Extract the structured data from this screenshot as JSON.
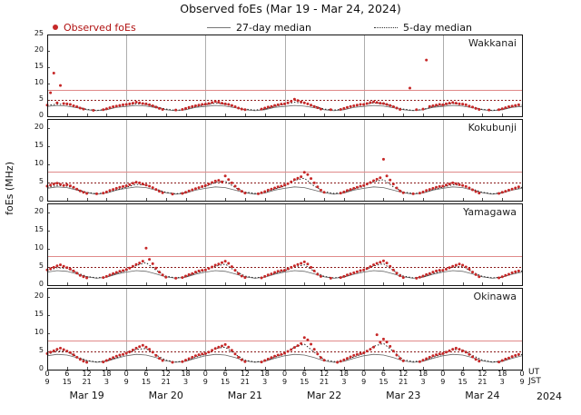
{
  "title": "Observed foEs (Mar 19 - Mar 24, 2024)",
  "legend": [
    {
      "label": "Observed foEs",
      "type": "dot",
      "color": "#c62828"
    },
    {
      "label": "27-day median",
      "type": "line",
      "color": "#777777"
    },
    {
      "label": "5-day median",
      "type": "dotted",
      "color": "#333333"
    }
  ],
  "ylabel": "foEs (MHz)",
  "axis": {
    "ut_label": "UT",
    "jst_label": "JST",
    "year": "2024",
    "ut_ticks": [
      "0",
      "6",
      "12",
      "18"
    ],
    "jst_ticks": [
      "9",
      "15",
      "21",
      "3"
    ],
    "ut_last": "0",
    "jst_last": "9",
    "days": [
      "Mar 19",
      "Mar 20",
      "Mar 21",
      "Mar 22",
      "Mar 23",
      "Mar 24"
    ]
  },
  "colors": {
    "observed": "#c62828",
    "median27": "#666666",
    "median5": "#111111",
    "threshold_solid": "#e08a8a",
    "threshold_dotted": "#8b1a1a",
    "grid": "#999999",
    "border": "#111111"
  },
  "chart_data": {
    "type": "scatter",
    "x_unit": "hours UT from Mar 19 00:00, 2024",
    "x_range": [
      0,
      144
    ],
    "x_tick_step_hours": 6,
    "grid": "vertical lines at day boundaries",
    "legend_position": "top",
    "thresholds": {
      "solid_red": 8,
      "dotted_darkred": 5
    },
    "stations": [
      {
        "name": "Wakkanai",
        "ylim": [
          0,
          25
        ],
        "yticks": [
          0,
          5,
          10,
          15,
          20,
          25
        ],
        "observed_hourly": [
          3.4,
          7.2,
          13.2,
          4.1,
          9.4,
          3.9,
          3.8,
          3.6,
          3.2,
          2.9,
          2.5,
          2.2,
          null,
          null,
          1.8,
          null,
          null,
          2.0,
          2.3,
          2.6,
          2.9,
          3.1,
          3.3,
          3.5,
          3.6,
          3.8,
          4.0,
          4.3,
          4.1,
          3.9,
          3.8,
          3.5,
          3.2,
          2.8,
          2.4,
          2.1,
          null,
          null,
          null,
          1.9,
          null,
          2.1,
          2.4,
          2.7,
          3.0,
          3.2,
          3.4,
          3.6,
          3.7,
          3.9,
          4.2,
          4.5,
          4.3,
          4.0,
          3.8,
          3.6,
          3.3,
          2.9,
          2.5,
          2.2,
          2.0,
          null,
          null,
          null,
          null,
          2.2,
          2.5,
          2.8,
          3.0,
          3.3,
          3.5,
          3.7,
          3.8,
          4.1,
          4.6,
          5.2,
          4.8,
          4.4,
          4.1,
          3.8,
          3.4,
          3.0,
          2.6,
          2.2,
          null,
          null,
          2.0,
          null,
          null,
          2.1,
          2.4,
          2.7,
          3.0,
          3.2,
          3.4,
          3.6,
          3.6,
          3.9,
          4.2,
          4.4,
          4.2,
          4.0,
          3.9,
          3.6,
          3.3,
          2.9,
          2.5,
          2.1,
          null,
          null,
          8.6,
          null,
          2.0,
          null,
          2.2,
          17.2,
          3.0,
          3.2,
          3.4,
          3.6,
          3.5,
          3.8,
          4.0,
          4.2,
          4.0,
          3.8,
          3.7,
          3.5,
          3.1,
          2.8,
          2.4,
          2.1,
          null,
          null,
          1.9,
          null,
          null,
          2.0,
          2.3,
          2.6,
          2.9,
          3.1,
          3.3,
          3.5
        ],
        "median27_3h": [
          3.0,
          3.3,
          3.1,
          2.6,
          2.0,
          1.7,
          2.0,
          2.7,
          3.0,
          3.3,
          3.1,
          2.6,
          2.0,
          1.7,
          2.0,
          2.7,
          3.0,
          3.3,
          3.1,
          2.6,
          2.0,
          1.7,
          2.0,
          2.7,
          3.0,
          3.3,
          3.1,
          2.6,
          2.0,
          1.7,
          2.0,
          2.7,
          3.0,
          3.3,
          3.1,
          2.6,
          2.0,
          1.7,
          2.0,
          2.7,
          3.0,
          3.3,
          3.1,
          2.6,
          2.0,
          1.7,
          2.0,
          2.7,
          3.0
        ],
        "median5_3h": [
          3.3,
          3.7,
          3.5,
          2.9,
          2.1,
          1.8,
          2.1,
          2.9,
          3.4,
          3.8,
          3.6,
          2.9,
          2.2,
          1.8,
          2.1,
          2.9,
          3.5,
          4.0,
          3.7,
          3.0,
          2.2,
          1.9,
          2.2,
          3.0,
          3.6,
          4.3,
          3.9,
          3.1,
          2.2,
          1.9,
          2.2,
          3.0,
          3.5,
          4.1,
          3.8,
          3.0,
          2.2,
          1.8,
          2.1,
          2.9,
          3.4,
          3.9,
          3.6,
          2.9,
          2.1,
          1.8,
          2.1,
          2.9,
          3.4
        ]
      },
      {
        "name": "Kokubunji",
        "ylim": [
          0,
          22.5
        ],
        "yticks": [
          0,
          5,
          10,
          15,
          20
        ],
        "observed_hourly": [
          4.0,
          4.3,
          4.6,
          4.8,
          4.5,
          4.2,
          4.4,
          4.1,
          3.7,
          3.2,
          2.7,
          2.3,
          2.0,
          null,
          null,
          1.9,
          null,
          2.1,
          2.4,
          2.8,
          3.1,
          3.4,
          3.7,
          3.9,
          4.1,
          4.4,
          4.8,
          5.1,
          4.9,
          4.6,
          4.3,
          4.0,
          3.6,
          3.1,
          2.6,
          2.2,
          null,
          null,
          1.8,
          null,
          null,
          2.0,
          2.3,
          2.7,
          3.0,
          3.3,
          3.6,
          3.9,
          4.2,
          4.6,
          5.0,
          5.4,
          5.6,
          5.2,
          6.8,
          5.8,
          4.9,
          4.0,
          3.2,
          2.6,
          2.1,
          null,
          null,
          null,
          1.9,
          2.2,
          2.5,
          2.9,
          3.2,
          3.5,
          3.8,
          4.0,
          4.3,
          4.7,
          5.2,
          5.8,
          6.2,
          6.6,
          7.8,
          7.2,
          6.1,
          4.9,
          3.8,
          2.9,
          2.3,
          null,
          null,
          null,
          null,
          2.1,
          2.4,
          2.8,
          3.1,
          3.4,
          3.7,
          4.0,
          4.2,
          4.6,
          5.0,
          5.5,
          5.9,
          6.3,
          11.4,
          6.8,
          5.7,
          4.6,
          3.5,
          2.7,
          2.2,
          null,
          null,
          1.9,
          null,
          2.1,
          2.4,
          2.8,
          3.1,
          3.4,
          3.7,
          3.9,
          4.0,
          4.3,
          4.6,
          4.9,
          4.7,
          4.4,
          4.2,
          3.9,
          3.5,
          3.0,
          2.5,
          2.1,
          null,
          null,
          null,
          null,
          null,
          2.0,
          2.3,
          2.6,
          2.9,
          3.2,
          3.5,
          3.8
        ],
        "median27_3h": [
          3.4,
          3.8,
          3.6,
          2.9,
          2.2,
          1.8,
          2.1,
          2.9,
          3.4,
          3.8,
          3.6,
          2.9,
          2.2,
          1.8,
          2.1,
          2.9,
          3.4,
          3.8,
          3.6,
          2.9,
          2.2,
          1.8,
          2.1,
          2.9,
          3.4,
          3.8,
          3.6,
          2.9,
          2.2,
          1.8,
          2.1,
          2.9,
          3.4,
          3.8,
          3.6,
          2.9,
          2.2,
          1.8,
          2.1,
          2.9,
          3.4,
          3.8,
          3.6,
          2.9,
          2.2,
          1.8,
          2.1,
          2.9,
          3.4
        ],
        "median5_3h": [
          3.6,
          4.2,
          4.0,
          3.1,
          2.3,
          1.9,
          2.2,
          3.0,
          3.7,
          4.5,
          4.3,
          3.2,
          2.3,
          1.9,
          2.2,
          3.1,
          3.9,
          5.0,
          5.4,
          3.6,
          2.4,
          2.0,
          2.3,
          3.2,
          4.0,
          5.6,
          6.2,
          4.0,
          2.5,
          2.0,
          2.3,
          3.2,
          3.9,
          5.2,
          5.8,
          3.8,
          2.4,
          2.0,
          2.2,
          3.1,
          3.7,
          4.4,
          4.2,
          3.2,
          2.3,
          1.9,
          2.2,
          3.0,
          3.7
        ]
      },
      {
        "name": "Yamagawa",
        "ylim": [
          0,
          22.5
        ],
        "yticks": [
          0,
          5,
          10,
          15,
          20
        ],
        "observed_hourly": [
          4.2,
          4.5,
          4.9,
          5.3,
          5.6,
          5.2,
          4.8,
          4.4,
          3.9,
          3.3,
          2.7,
          2.3,
          2.0,
          null,
          null,
          null,
          null,
          2.1,
          2.4,
          2.8,
          3.2,
          3.5,
          3.8,
          4.0,
          4.3,
          4.7,
          5.2,
          5.7,
          6.1,
          6.6,
          10.2,
          7.1,
          5.9,
          4.7,
          3.6,
          2.8,
          2.2,
          null,
          null,
          1.9,
          null,
          2.1,
          2.5,
          2.9,
          3.2,
          3.6,
          3.9,
          4.1,
          4.2,
          4.6,
          5.0,
          5.5,
          5.8,
          6.2,
          6.6,
          6.0,
          5.1,
          4.1,
          3.2,
          2.5,
          2.1,
          null,
          null,
          null,
          null,
          2.0,
          2.4,
          2.8,
          3.1,
          3.5,
          3.8,
          4.0,
          4.1,
          4.5,
          4.9,
          5.3,
          5.7,
          6.0,
          6.4,
          5.8,
          4.9,
          3.9,
          3.0,
          2.4,
          null,
          null,
          1.9,
          null,
          null,
          2.1,
          2.4,
          2.8,
          3.1,
          3.4,
          3.7,
          4.0,
          4.2,
          4.6,
          5.1,
          5.6,
          6.0,
          6.3,
          6.7,
          6.1,
          5.2,
          4.2,
          3.3,
          2.6,
          2.1,
          null,
          null,
          null,
          1.9,
          2.2,
          2.5,
          2.9,
          3.2,
          3.6,
          3.9,
          4.1,
          4.1,
          4.4,
          4.8,
          5.2,
          5.5,
          5.8,
          5.5,
          5.0,
          4.4,
          3.6,
          2.9,
          2.3,
          null,
          null,
          null,
          null,
          null,
          2.0,
          2.3,
          2.7,
          3.0,
          3.4,
          3.7,
          3.9
        ],
        "median27_3h": [
          3.6,
          4.0,
          3.8,
          3.1,
          2.3,
          1.9,
          2.2,
          3.0,
          3.6,
          4.0,
          3.8,
          3.1,
          2.3,
          1.9,
          2.2,
          3.0,
          3.6,
          4.0,
          3.8,
          3.1,
          2.3,
          1.9,
          2.2,
          3.0,
          3.6,
          4.0,
          3.8,
          3.1,
          2.3,
          1.9,
          2.2,
          3.0,
          3.6,
          4.0,
          3.8,
          3.1,
          2.3,
          1.9,
          2.2,
          3.0,
          3.6,
          4.0,
          3.8,
          3.1,
          2.3,
          1.9,
          2.2,
          3.0,
          3.6
        ],
        "median5_3h": [
          3.9,
          4.8,
          4.6,
          3.4,
          2.4,
          2.0,
          2.3,
          3.2,
          4.0,
          5.4,
          6.2,
          4.1,
          2.5,
          2.0,
          2.3,
          3.3,
          4.0,
          5.2,
          5.8,
          3.9,
          2.5,
          2.0,
          2.3,
          3.2,
          3.9,
          5.0,
          5.6,
          3.8,
          2.4,
          2.0,
          2.3,
          3.2,
          4.0,
          5.3,
          5.9,
          4.0,
          2.5,
          2.0,
          2.3,
          3.2,
          3.9,
          4.9,
          5.2,
          3.6,
          2.4,
          2.0,
          2.2,
          3.1,
          3.9
        ]
      },
      {
        "name": "Okinawa",
        "ylim": [
          0,
          22.5
        ],
        "yticks": [
          0,
          5,
          10,
          15,
          20
        ],
        "observed_hourly": [
          4.4,
          4.8,
          5.2,
          5.6,
          5.9,
          5.5,
          5.1,
          4.7,
          4.1,
          3.4,
          2.8,
          2.3,
          2.0,
          null,
          null,
          null,
          null,
          2.1,
          2.5,
          2.9,
          3.3,
          3.7,
          4.0,
          4.2,
          4.5,
          4.9,
          5.4,
          5.9,
          6.3,
          6.7,
          6.2,
          5.6,
          4.8,
          3.9,
          3.1,
          2.5,
          null,
          null,
          2.0,
          null,
          null,
          2.2,
          2.6,
          3.0,
          3.4,
          3.8,
          4.1,
          4.3,
          4.4,
          4.8,
          5.3,
          5.8,
          6.2,
          6.5,
          6.9,
          6.2,
          5.3,
          4.3,
          3.4,
          2.7,
          2.2,
          null,
          null,
          null,
          null,
          2.1,
          2.5,
          2.9,
          3.3,
          3.7,
          4.0,
          4.2,
          4.5,
          5.0,
          5.5,
          6.1,
          6.6,
          7.2,
          8.8,
          8.2,
          7.0,
          5.6,
          4.3,
          3.3,
          2.6,
          null,
          null,
          null,
          2.0,
          2.3,
          2.7,
          3.1,
          3.5,
          3.9,
          4.2,
          4.4,
          4.6,
          5.1,
          5.6,
          6.2,
          9.6,
          7.5,
          8.4,
          7.6,
          6.4,
          5.1,
          4.0,
          3.1,
          2.4,
          null,
          null,
          null,
          null,
          2.2,
          2.6,
          3.0,
          3.4,
          3.8,
          4.1,
          4.3,
          4.4,
          4.8,
          5.2,
          5.6,
          5.9,
          5.6,
          5.2,
          4.8,
          4.2,
          3.5,
          2.8,
          2.3,
          null,
          null,
          null,
          null,
          null,
          2.1,
          2.5,
          2.9,
          3.2,
          3.6,
          3.9,
          4.2
        ],
        "median27_3h": [
          3.8,
          4.2,
          4.0,
          3.3,
          2.4,
          2.0,
          2.3,
          3.1,
          3.8,
          4.2,
          4.0,
          3.3,
          2.4,
          2.0,
          2.3,
          3.1,
          3.8,
          4.2,
          4.0,
          3.3,
          2.4,
          2.0,
          2.3,
          3.1,
          3.8,
          4.2,
          4.0,
          3.3,
          2.4,
          2.0,
          2.3,
          3.1,
          3.8,
          4.2,
          4.0,
          3.3,
          2.4,
          2.0,
          2.3,
          3.1,
          3.8,
          4.2,
          4.0,
          3.3,
          2.4,
          2.0,
          2.3,
          3.1,
          3.8
        ],
        "median5_3h": [
          4.1,
          5.2,
          4.9,
          3.6,
          2.5,
          2.1,
          2.4,
          3.3,
          4.2,
          5.6,
          5.8,
          4.0,
          2.6,
          2.1,
          2.4,
          3.4,
          4.2,
          5.8,
          6.2,
          4.2,
          2.6,
          2.1,
          2.4,
          3.4,
          4.3,
          6.2,
          7.0,
          4.8,
          2.7,
          2.2,
          2.5,
          3.5,
          4.4,
          6.4,
          7.2,
          5.0,
          2.7,
          2.2,
          2.4,
          3.4,
          4.2,
          5.5,
          5.4,
          3.9,
          2.6,
          2.1,
          2.3,
          3.3,
          4.2
        ]
      }
    ]
  }
}
